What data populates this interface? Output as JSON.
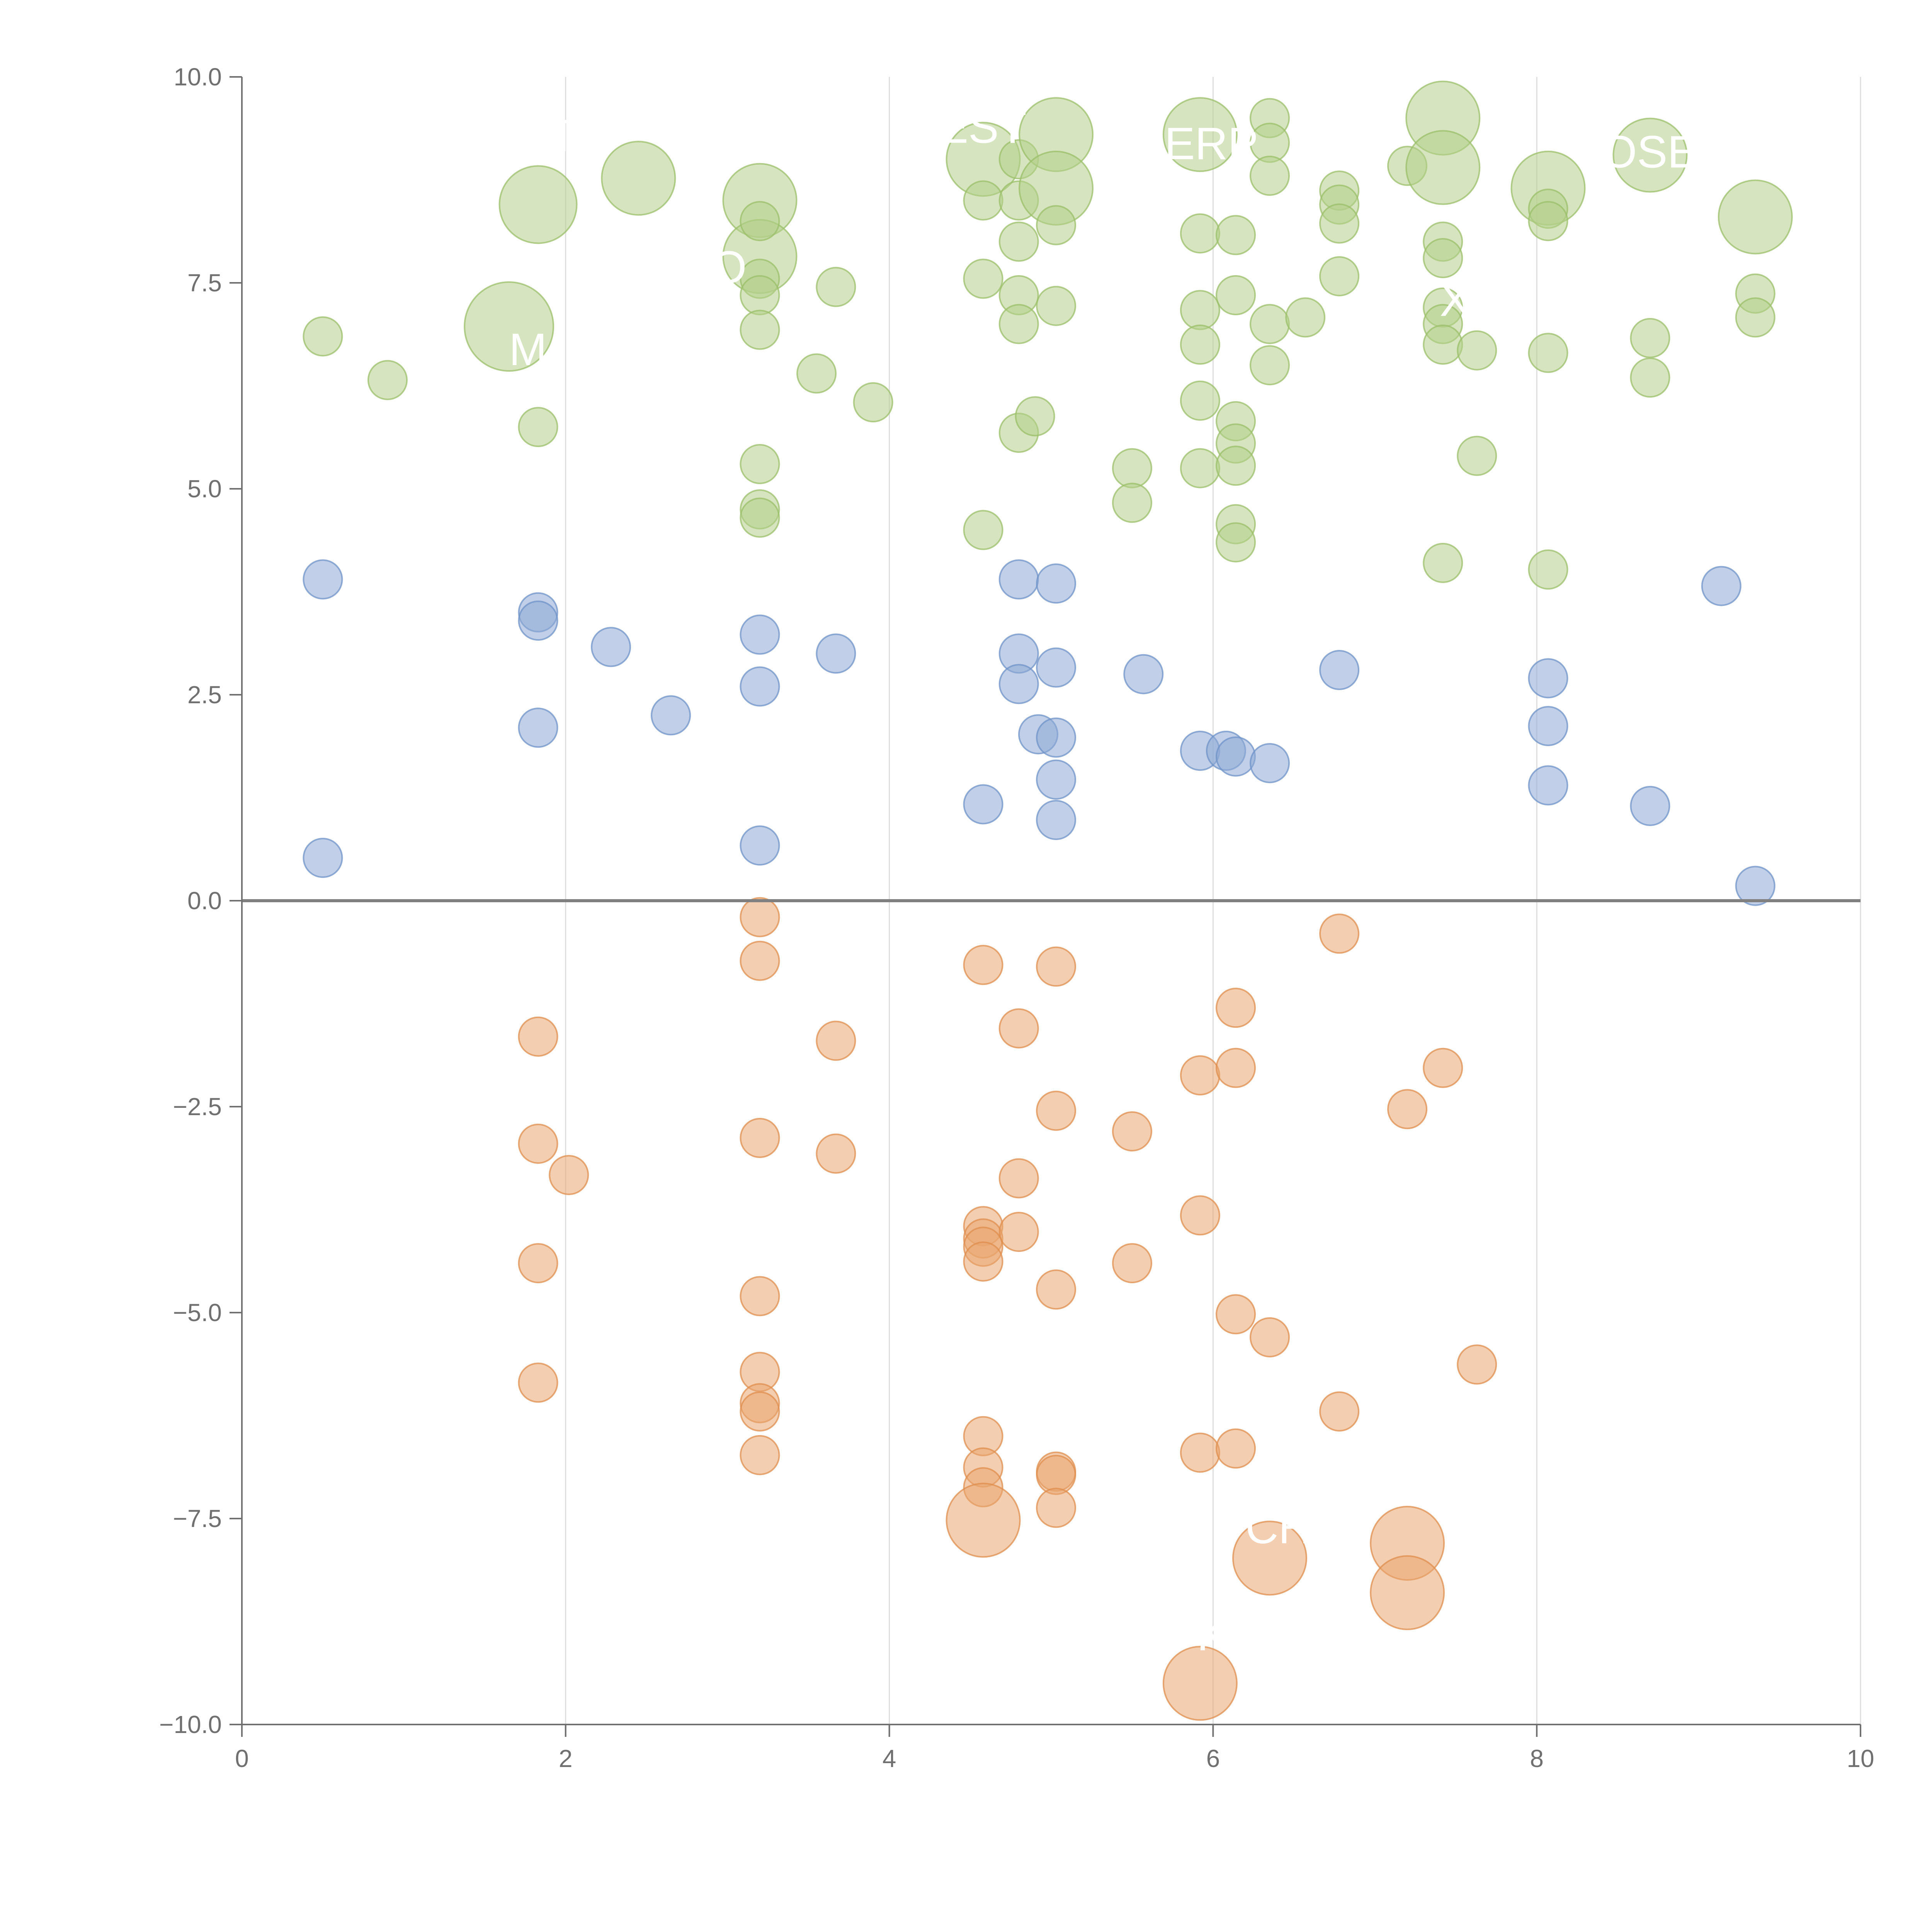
{
  "chart_data": {
    "type": "scatter",
    "title": "",
    "xlabel": "",
    "ylabel": "",
    "xlim": [
      0,
      10
    ],
    "ylim": [
      -10,
      10
    ],
    "x_ticks": [
      "0",
      "2",
      "4",
      "6",
      "8",
      "10"
    ],
    "y_ticks": [
      "10.0",
      "7.5",
      "5.0",
      "2.5",
      "0.0",
      "−2.5",
      "−5.0",
      "−7.5",
      "−10.0"
    ],
    "grid": "vertical",
    "legend": "none",
    "colors": {
      "green_fill": "#b5cf8b",
      "green_stroke": "#9bbf6a",
      "blue_fill": "#8eaad6",
      "blue_stroke": "#6f93c8",
      "orange_fill": "#e9a56f",
      "orange_stroke": "#df8d4d",
      "axis": "#707070",
      "grid": "#dddddd",
      "zero_line": "#808080"
    },
    "annotations": [
      {
        "text": "TH",
        "x": 1.9,
        "y": 9.1
      },
      {
        "text": "EST",
        "x": 4.3,
        "y": 9.2
      },
      {
        "text": "ERP",
        "x": 5.7,
        "y": 9.0
      },
      {
        "text": "OSE",
        "x": 8.4,
        "y": 8.9
      },
      {
        "text": "O",
        "x": 2.9,
        "y": 7.5
      },
      {
        "text": "X",
        "x": 7.4,
        "y": 7.1
      },
      {
        "text": "M",
        "x": 1.65,
        "y": 6.5
      },
      {
        "text": "CH",
        "x": 6.2,
        "y": -7.8
      },
      {
        "text": "K",
        "x": 5.9,
        "y": -9.1
      }
    ],
    "series": [
      {
        "name": "green",
        "points": [
          {
            "x": 0.5,
            "y": 6.85,
            "s": 1
          },
          {
            "x": 0.9,
            "y": 6.32,
            "s": 1
          },
          {
            "x": 1.65,
            "y": 6.97,
            "s": 2.3
          },
          {
            "x": 1.83,
            "y": 8.45,
            "s": 2
          },
          {
            "x": 1.83,
            "y": 5.75,
            "s": 1
          },
          {
            "x": 2.45,
            "y": 8.77,
            "s": 1.9
          },
          {
            "x": 3.2,
            "y": 8.5,
            "s": 1.9
          },
          {
            "x": 3.2,
            "y": 7.82,
            "s": 1.9
          },
          {
            "x": 3.2,
            "y": 8.25,
            "s": 1
          },
          {
            "x": 3.2,
            "y": 7.55,
            "s": 1
          },
          {
            "x": 3.2,
            "y": 7.35,
            "s": 1
          },
          {
            "x": 3.2,
            "y": 6.93,
            "s": 1
          },
          {
            "x": 3.2,
            "y": 5.3,
            "s": 1
          },
          {
            "x": 3.2,
            "y": 4.75,
            "s": 1
          },
          {
            "x": 3.2,
            "y": 4.65,
            "s": 1
          },
          {
            "x": 3.55,
            "y": 6.4,
            "s": 1
          },
          {
            "x": 3.67,
            "y": 7.45,
            "s": 1
          },
          {
            "x": 3.9,
            "y": 6.05,
            "s": 1
          },
          {
            "x": 4.58,
            "y": 9.0,
            "s": 1.9
          },
          {
            "x": 4.58,
            "y": 8.5,
            "s": 1
          },
          {
            "x": 4.58,
            "y": 7.55,
            "s": 1
          },
          {
            "x": 4.58,
            "y": 4.5,
            "s": 1
          },
          {
            "x": 4.8,
            "y": 9.0,
            "s": 1
          },
          {
            "x": 4.8,
            "y": 8.5,
            "s": 1
          },
          {
            "x": 4.8,
            "y": 8.0,
            "s": 1
          },
          {
            "x": 4.8,
            "y": 7.35,
            "s": 1
          },
          {
            "x": 4.8,
            "y": 7.0,
            "s": 1
          },
          {
            "x": 4.8,
            "y": 5.68,
            "s": 1
          },
          {
            "x": 4.9,
            "y": 5.88,
            "s": 1
          },
          {
            "x": 5.03,
            "y": 9.3,
            "s": 1.9
          },
          {
            "x": 5.03,
            "y": 8.65,
            "s": 1.9
          },
          {
            "x": 5.03,
            "y": 8.2,
            "s": 1
          },
          {
            "x": 5.03,
            "y": 7.22,
            "s": 1
          },
          {
            "x": 5.5,
            "y": 5.25,
            "s": 1
          },
          {
            "x": 5.5,
            "y": 4.83,
            "s": 1
          },
          {
            "x": 5.92,
            "y": 9.3,
            "s": 1.9
          },
          {
            "x": 5.92,
            "y": 8.1,
            "s": 1
          },
          {
            "x": 5.92,
            "y": 7.17,
            "s": 1
          },
          {
            "x": 5.92,
            "y": 6.75,
            "s": 1
          },
          {
            "x": 5.92,
            "y": 6.07,
            "s": 1
          },
          {
            "x": 5.92,
            "y": 5.25,
            "s": 1
          },
          {
            "x": 6.14,
            "y": 8.08,
            "s": 1
          },
          {
            "x": 6.14,
            "y": 7.35,
            "s": 1
          },
          {
            "x": 6.14,
            "y": 5.82,
            "s": 1
          },
          {
            "x": 6.14,
            "y": 5.55,
            "s": 1
          },
          {
            "x": 6.14,
            "y": 5.28,
            "s": 1
          },
          {
            "x": 6.14,
            "y": 4.57,
            "s": 1
          },
          {
            "x": 6.14,
            "y": 4.35,
            "s": 1
          },
          {
            "x": 6.35,
            "y": 9.5,
            "s": 1
          },
          {
            "x": 6.35,
            "y": 9.2,
            "s": 1
          },
          {
            "x": 6.35,
            "y": 8.8,
            "s": 1
          },
          {
            "x": 6.35,
            "y": 7.0,
            "s": 1
          },
          {
            "x": 6.35,
            "y": 6.5,
            "s": 1
          },
          {
            "x": 6.57,
            "y": 7.08,
            "s": 1
          },
          {
            "x": 6.78,
            "y": 8.62,
            "s": 1
          },
          {
            "x": 6.78,
            "y": 8.45,
            "s": 1
          },
          {
            "x": 6.78,
            "y": 8.22,
            "s": 1
          },
          {
            "x": 6.78,
            "y": 7.58,
            "s": 1
          },
          {
            "x": 7.2,
            "y": 8.92,
            "s": 1
          },
          {
            "x": 7.42,
            "y": 9.5,
            "s": 1.9
          },
          {
            "x": 7.42,
            "y": 8.9,
            "s": 1.9
          },
          {
            "x": 7.42,
            "y": 8.0,
            "s": 1
          },
          {
            "x": 7.42,
            "y": 7.8,
            "s": 1
          },
          {
            "x": 7.42,
            "y": 7.2,
            "s": 1
          },
          {
            "x": 7.42,
            "y": 7.0,
            "s": 1
          },
          {
            "x": 7.42,
            "y": 6.75,
            "s": 1
          },
          {
            "x": 7.42,
            "y": 4.1,
            "s": 1
          },
          {
            "x": 7.63,
            "y": 6.68,
            "s": 1
          },
          {
            "x": 7.63,
            "y": 5.4,
            "s": 1
          },
          {
            "x": 8.07,
            "y": 8.65,
            "s": 1.9
          },
          {
            "x": 8.07,
            "y": 8.4,
            "s": 1
          },
          {
            "x": 8.07,
            "y": 8.25,
            "s": 1
          },
          {
            "x": 8.07,
            "y": 6.65,
            "s": 1
          },
          {
            "x": 8.07,
            "y": 4.02,
            "s": 1
          },
          {
            "x": 8.7,
            "y": 9.05,
            "s": 1.9
          },
          {
            "x": 8.7,
            "y": 6.83,
            "s": 1
          },
          {
            "x": 8.7,
            "y": 6.35,
            "s": 1
          },
          {
            "x": 9.35,
            "y": 8.3,
            "s": 1.9
          },
          {
            "x": 9.35,
            "y": 7.37,
            "s": 1
          },
          {
            "x": 9.35,
            "y": 7.08,
            "s": 1
          }
        ]
      },
      {
        "name": "blue",
        "points": [
          {
            "x": 0.5,
            "y": 3.9,
            "s": 1
          },
          {
            "x": 0.5,
            "y": 0.52,
            "s": 1
          },
          {
            "x": 1.83,
            "y": 3.5,
            "s": 1
          },
          {
            "x": 1.83,
            "y": 3.4,
            "s": 1
          },
          {
            "x": 1.83,
            "y": 2.1,
            "s": 1
          },
          {
            "x": 2.28,
            "y": 3.08,
            "s": 1
          },
          {
            "x": 2.65,
            "y": 2.25,
            "s": 1
          },
          {
            "x": 3.2,
            "y": 3.23,
            "s": 1
          },
          {
            "x": 3.2,
            "y": 2.6,
            "s": 1
          },
          {
            "x": 3.2,
            "y": 0.67,
            "s": 1
          },
          {
            "x": 3.67,
            "y": 3.0,
            "s": 1
          },
          {
            "x": 4.58,
            "y": 1.17,
            "s": 1
          },
          {
            "x": 4.8,
            "y": 3.9,
            "s": 1
          },
          {
            "x": 4.8,
            "y": 3.0,
            "s": 1
          },
          {
            "x": 4.8,
            "y": 2.63,
            "s": 1
          },
          {
            "x": 4.92,
            "y": 2.02,
            "s": 1
          },
          {
            "x": 5.03,
            "y": 3.85,
            "s": 1
          },
          {
            "x": 5.03,
            "y": 2.83,
            "s": 1
          },
          {
            "x": 5.03,
            "y": 1.98,
            "s": 1
          },
          {
            "x": 5.03,
            "y": 1.47,
            "s": 1
          },
          {
            "x": 5.03,
            "y": 0.98,
            "s": 1
          },
          {
            "x": 5.57,
            "y": 2.75,
            "s": 1
          },
          {
            "x": 5.92,
            "y": 1.82,
            "s": 1
          },
          {
            "x": 6.08,
            "y": 1.82,
            "s": 1
          },
          {
            "x": 6.14,
            "y": 1.75,
            "s": 1
          },
          {
            "x": 6.35,
            "y": 1.67,
            "s": 1
          },
          {
            "x": 6.78,
            "y": 2.8,
            "s": 1
          },
          {
            "x": 8.07,
            "y": 2.7,
            "s": 1
          },
          {
            "x": 8.07,
            "y": 2.12,
            "s": 1
          },
          {
            "x": 8.07,
            "y": 1.4,
            "s": 1
          },
          {
            "x": 8.7,
            "y": 1.15,
            "s": 1
          },
          {
            "x": 9.14,
            "y": 3.82,
            "s": 1
          },
          {
            "x": 9.35,
            "y": 0.18,
            "s": 1
          }
        ]
      },
      {
        "name": "orange",
        "points": [
          {
            "x": 1.83,
            "y": -1.65,
            "s": 1
          },
          {
            "x": 1.83,
            "y": -2.95,
            "s": 1
          },
          {
            "x": 1.83,
            "y": -4.4,
            "s": 1
          },
          {
            "x": 1.83,
            "y": -5.85,
            "s": 1
          },
          {
            "x": 2.02,
            "y": -3.33,
            "s": 1
          },
          {
            "x": 3.2,
            "y": -0.2,
            "s": 1
          },
          {
            "x": 3.2,
            "y": -0.73,
            "s": 1
          },
          {
            "x": 3.2,
            "y": -2.88,
            "s": 1
          },
          {
            "x": 3.2,
            "y": -4.8,
            "s": 1
          },
          {
            "x": 3.2,
            "y": -5.72,
            "s": 1
          },
          {
            "x": 3.2,
            "y": -6.1,
            "s": 1
          },
          {
            "x": 3.2,
            "y": -6.2,
            "s": 1
          },
          {
            "x": 3.2,
            "y": -6.73,
            "s": 1
          },
          {
            "x": 3.67,
            "y": -1.7,
            "s": 1
          },
          {
            "x": 3.67,
            "y": -3.07,
            "s": 1
          },
          {
            "x": 4.58,
            "y": -0.78,
            "s": 1
          },
          {
            "x": 4.58,
            "y": -3.95,
            "s": 1
          },
          {
            "x": 4.58,
            "y": -4.1,
            "s": 1
          },
          {
            "x": 4.58,
            "y": -4.2,
            "s": 1
          },
          {
            "x": 4.58,
            "y": -4.38,
            "s": 1
          },
          {
            "x": 4.58,
            "y": -6.5,
            "s": 1
          },
          {
            "x": 4.58,
            "y": -6.88,
            "s": 1
          },
          {
            "x": 4.58,
            "y": -7.12,
            "s": 1
          },
          {
            "x": 4.58,
            "y": -7.52,
            "s": 1.9
          },
          {
            "x": 4.8,
            "y": -1.55,
            "s": 1
          },
          {
            "x": 4.8,
            "y": -3.37,
            "s": 1
          },
          {
            "x": 4.8,
            "y": -4.02,
            "s": 1
          },
          {
            "x": 5.03,
            "y": -0.8,
            "s": 1
          },
          {
            "x": 5.03,
            "y": -2.55,
            "s": 1
          },
          {
            "x": 5.03,
            "y": -4.72,
            "s": 1
          },
          {
            "x": 5.03,
            "y": -6.93,
            "s": 1
          },
          {
            "x": 5.03,
            "y": -6.97,
            "s": 1
          },
          {
            "x": 5.03,
            "y": -7.37,
            "s": 1
          },
          {
            "x": 5.5,
            "y": -2.8,
            "s": 1
          },
          {
            "x": 5.5,
            "y": -4.4,
            "s": 1
          },
          {
            "x": 5.92,
            "y": -2.12,
            "s": 1
          },
          {
            "x": 5.92,
            "y": -3.82,
            "s": 1
          },
          {
            "x": 5.92,
            "y": -6.7,
            "s": 1
          },
          {
            "x": 5.92,
            "y": -9.5,
            "s": 1.9
          },
          {
            "x": 6.14,
            "y": -1.3,
            "s": 1
          },
          {
            "x": 6.14,
            "y": -2.03,
            "s": 1
          },
          {
            "x": 6.14,
            "y": -5.02,
            "s": 1
          },
          {
            "x": 6.14,
            "y": -6.65,
            "s": 1
          },
          {
            "x": 6.35,
            "y": -5.3,
            "s": 1
          },
          {
            "x": 6.35,
            "y": -7.98,
            "s": 1.9
          },
          {
            "x": 6.78,
            "y": -0.4,
            "s": 1
          },
          {
            "x": 6.78,
            "y": -6.2,
            "s": 1
          },
          {
            "x": 7.2,
            "y": -2.53,
            "s": 1
          },
          {
            "x": 7.2,
            "y": -7.8,
            "s": 1.9
          },
          {
            "x": 7.2,
            "y": -8.4,
            "s": 1.9
          },
          {
            "x": 7.42,
            "y": -2.03,
            "s": 1
          },
          {
            "x": 7.63,
            "y": -5.63,
            "s": 1
          }
        ]
      }
    ]
  }
}
